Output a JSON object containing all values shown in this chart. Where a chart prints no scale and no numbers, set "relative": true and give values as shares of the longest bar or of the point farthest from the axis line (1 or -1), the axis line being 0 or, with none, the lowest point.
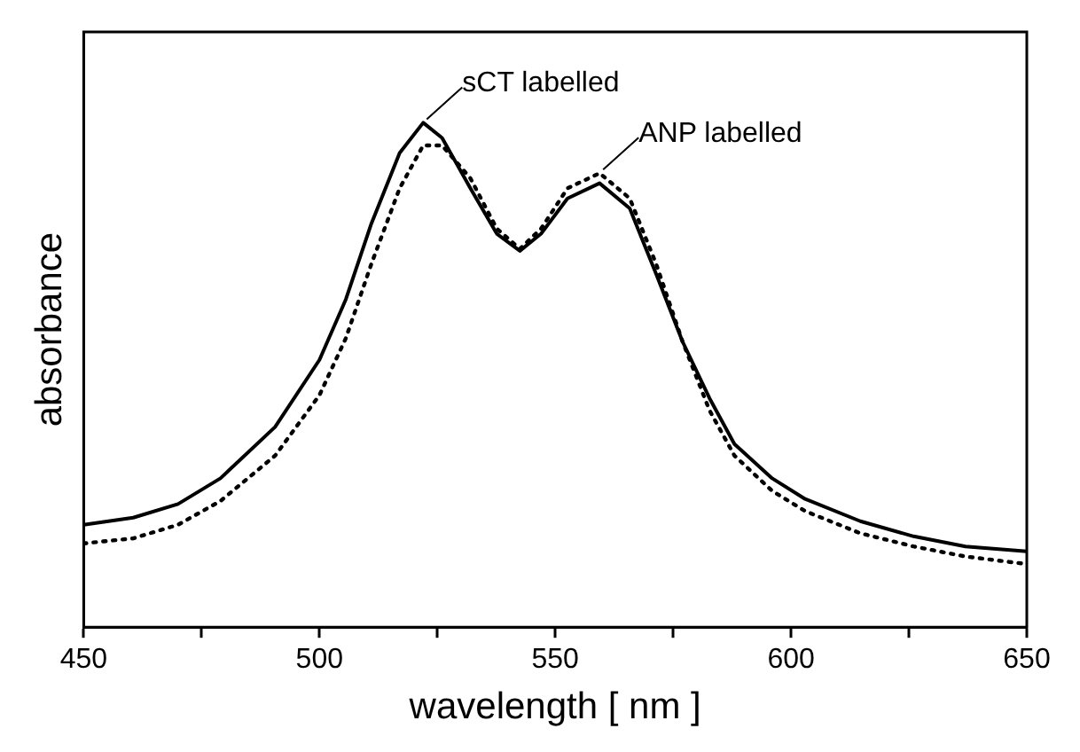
{
  "chart_data": {
    "type": "line",
    "relative": true,
    "xlabel": "wavelength [ nm ]",
    "ylabel": "absorbance",
    "x": [
      450,
      460.5,
      470,
      479,
      490.6,
      500,
      505.6,
      511,
      517,
      522,
      526,
      532,
      537.6,
      542.5,
      547,
      552.6,
      559.4,
      565.8,
      571.4,
      577,
      582.7,
      588,
      596,
      603,
      614.7,
      626,
      637,
      650
    ],
    "series": [
      {
        "color": "#000000",
        "line_style": "solid",
        "values": [
          0.203,
          0.217,
          0.244,
          0.295,
          0.397,
          0.53,
          0.65,
          0.8,
          0.94,
          1.0,
          0.97,
          0.87,
          0.78,
          0.746,
          0.78,
          0.85,
          0.88,
          0.83,
          0.7,
          0.566,
          0.454,
          0.363,
          0.295,
          0.254,
          0.21,
          0.18,
          0.16,
          0.15
        ]
      },
      {
        "color": "#000000",
        "line_style": "dotted",
        "values": [
          0.166,
          0.176,
          0.203,
          0.25,
          0.34,
          0.46,
          0.573,
          0.72,
          0.87,
          0.955,
          0.955,
          0.89,
          0.79,
          0.75,
          0.79,
          0.87,
          0.9,
          0.85,
          0.72,
          0.566,
          0.43,
          0.34,
          0.27,
          0.23,
          0.186,
          0.16,
          0.14,
          0.125
        ]
      }
    ],
    "xlim": [
      450,
      650
    ],
    "xticks": [
      450,
      {
        "value": 475,
        "label": null
      },
      500,
      {
        "value": 525,
        "label": null
      },
      550,
      {
        "value": 575,
        "label": null
      },
      600,
      {
        "value": 625,
        "label": null
      },
      650
    ],
    "annotations": [
      {
        "text": "sCT labelled",
        "x": 522,
        "y": 1.0
      },
      {
        "text": "ANP labelled",
        "x": 559.4,
        "y": 0.9
      }
    ],
    "grid": false,
    "legend": false,
    "marker": "none"
  }
}
